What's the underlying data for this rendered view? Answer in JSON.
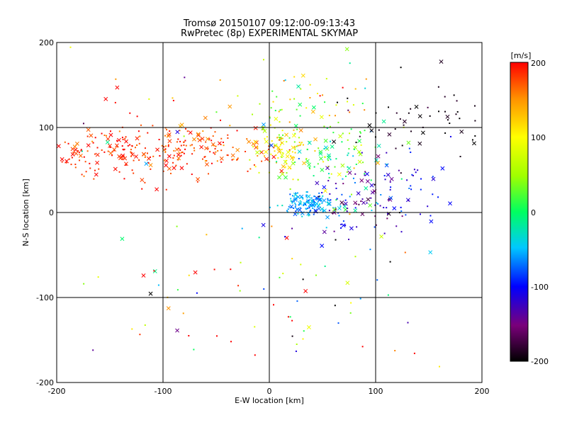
{
  "chart_data": {
    "type": "scatter",
    "title": "Tromsø 20150107 09:12:00-09:13:43",
    "subtitle": "RwPretec (8p) EXPERIMENTAL SKYMAP",
    "xlabel": "E-W location [km]",
    "ylabel": "N-S location [km]",
    "xlim": [
      -200,
      200
    ],
    "ylim": [
      -200,
      200
    ],
    "x_ticks": [
      "-200",
      "-100",
      "0",
      "100",
      "200"
    ],
    "y_ticks": [
      "-200",
      "-100",
      "0",
      "100",
      "200"
    ],
    "grid": true,
    "colorbar": {
      "label": "[m/s]",
      "range": [
        -200,
        200
      ],
      "ticks": [
        "-200",
        "-100",
        "0",
        "100",
        "200"
      ],
      "colormap": "black-purple-blue-cyan-green-yellow-orange-red"
    },
    "marker_types": [
      "dot",
      "x"
    ],
    "clusters": [
      {
        "cx": -150,
        "cy": 70,
        "sx": 30,
        "sy": 15,
        "n": 130,
        "vel": 185,
        "vsd": 15
      },
      {
        "cx": -60,
        "cy": 75,
        "sx": 35,
        "sy": 15,
        "n": 150,
        "vel": 178,
        "vsd": 22
      },
      {
        "cx": 10,
        "cy": 75,
        "sx": 15,
        "sy": 15,
        "n": 90,
        "vel": 95,
        "vsd": 35
      },
      {
        "cx": 60,
        "cy": 60,
        "sx": 30,
        "sy": 25,
        "n": 110,
        "vel": 20,
        "vsd": 50
      },
      {
        "cx": 35,
        "cy": 10,
        "sx": 12,
        "sy": 7,
        "n": 130,
        "vel": -55,
        "vsd": 15
      },
      {
        "cx": 85,
        "cy": 15,
        "sx": 25,
        "sy": 20,
        "n": 90,
        "vel": -130,
        "vsd": 35
      },
      {
        "cx": 130,
        "cy": 30,
        "sx": 20,
        "sy": 25,
        "n": 40,
        "vel": -100,
        "vsd": 20
      },
      {
        "cx": 145,
        "cy": 110,
        "sx": 40,
        "sy": 25,
        "n": 60,
        "vel": -195,
        "vsd": 10
      },
      {
        "cx": 35,
        "cy": 130,
        "sx": 35,
        "sy": 20,
        "n": 60,
        "vel": 80,
        "vsd": 60
      },
      {
        "cx": -130,
        "cy": 110,
        "sx": 40,
        "sy": 40,
        "n": 30,
        "vel": 120,
        "vsd": 140
      },
      {
        "cx": 0,
        "cy": -90,
        "sx": 100,
        "sy": 55,
        "n": 90,
        "vel": 60,
        "vsd": 160
      }
    ]
  }
}
